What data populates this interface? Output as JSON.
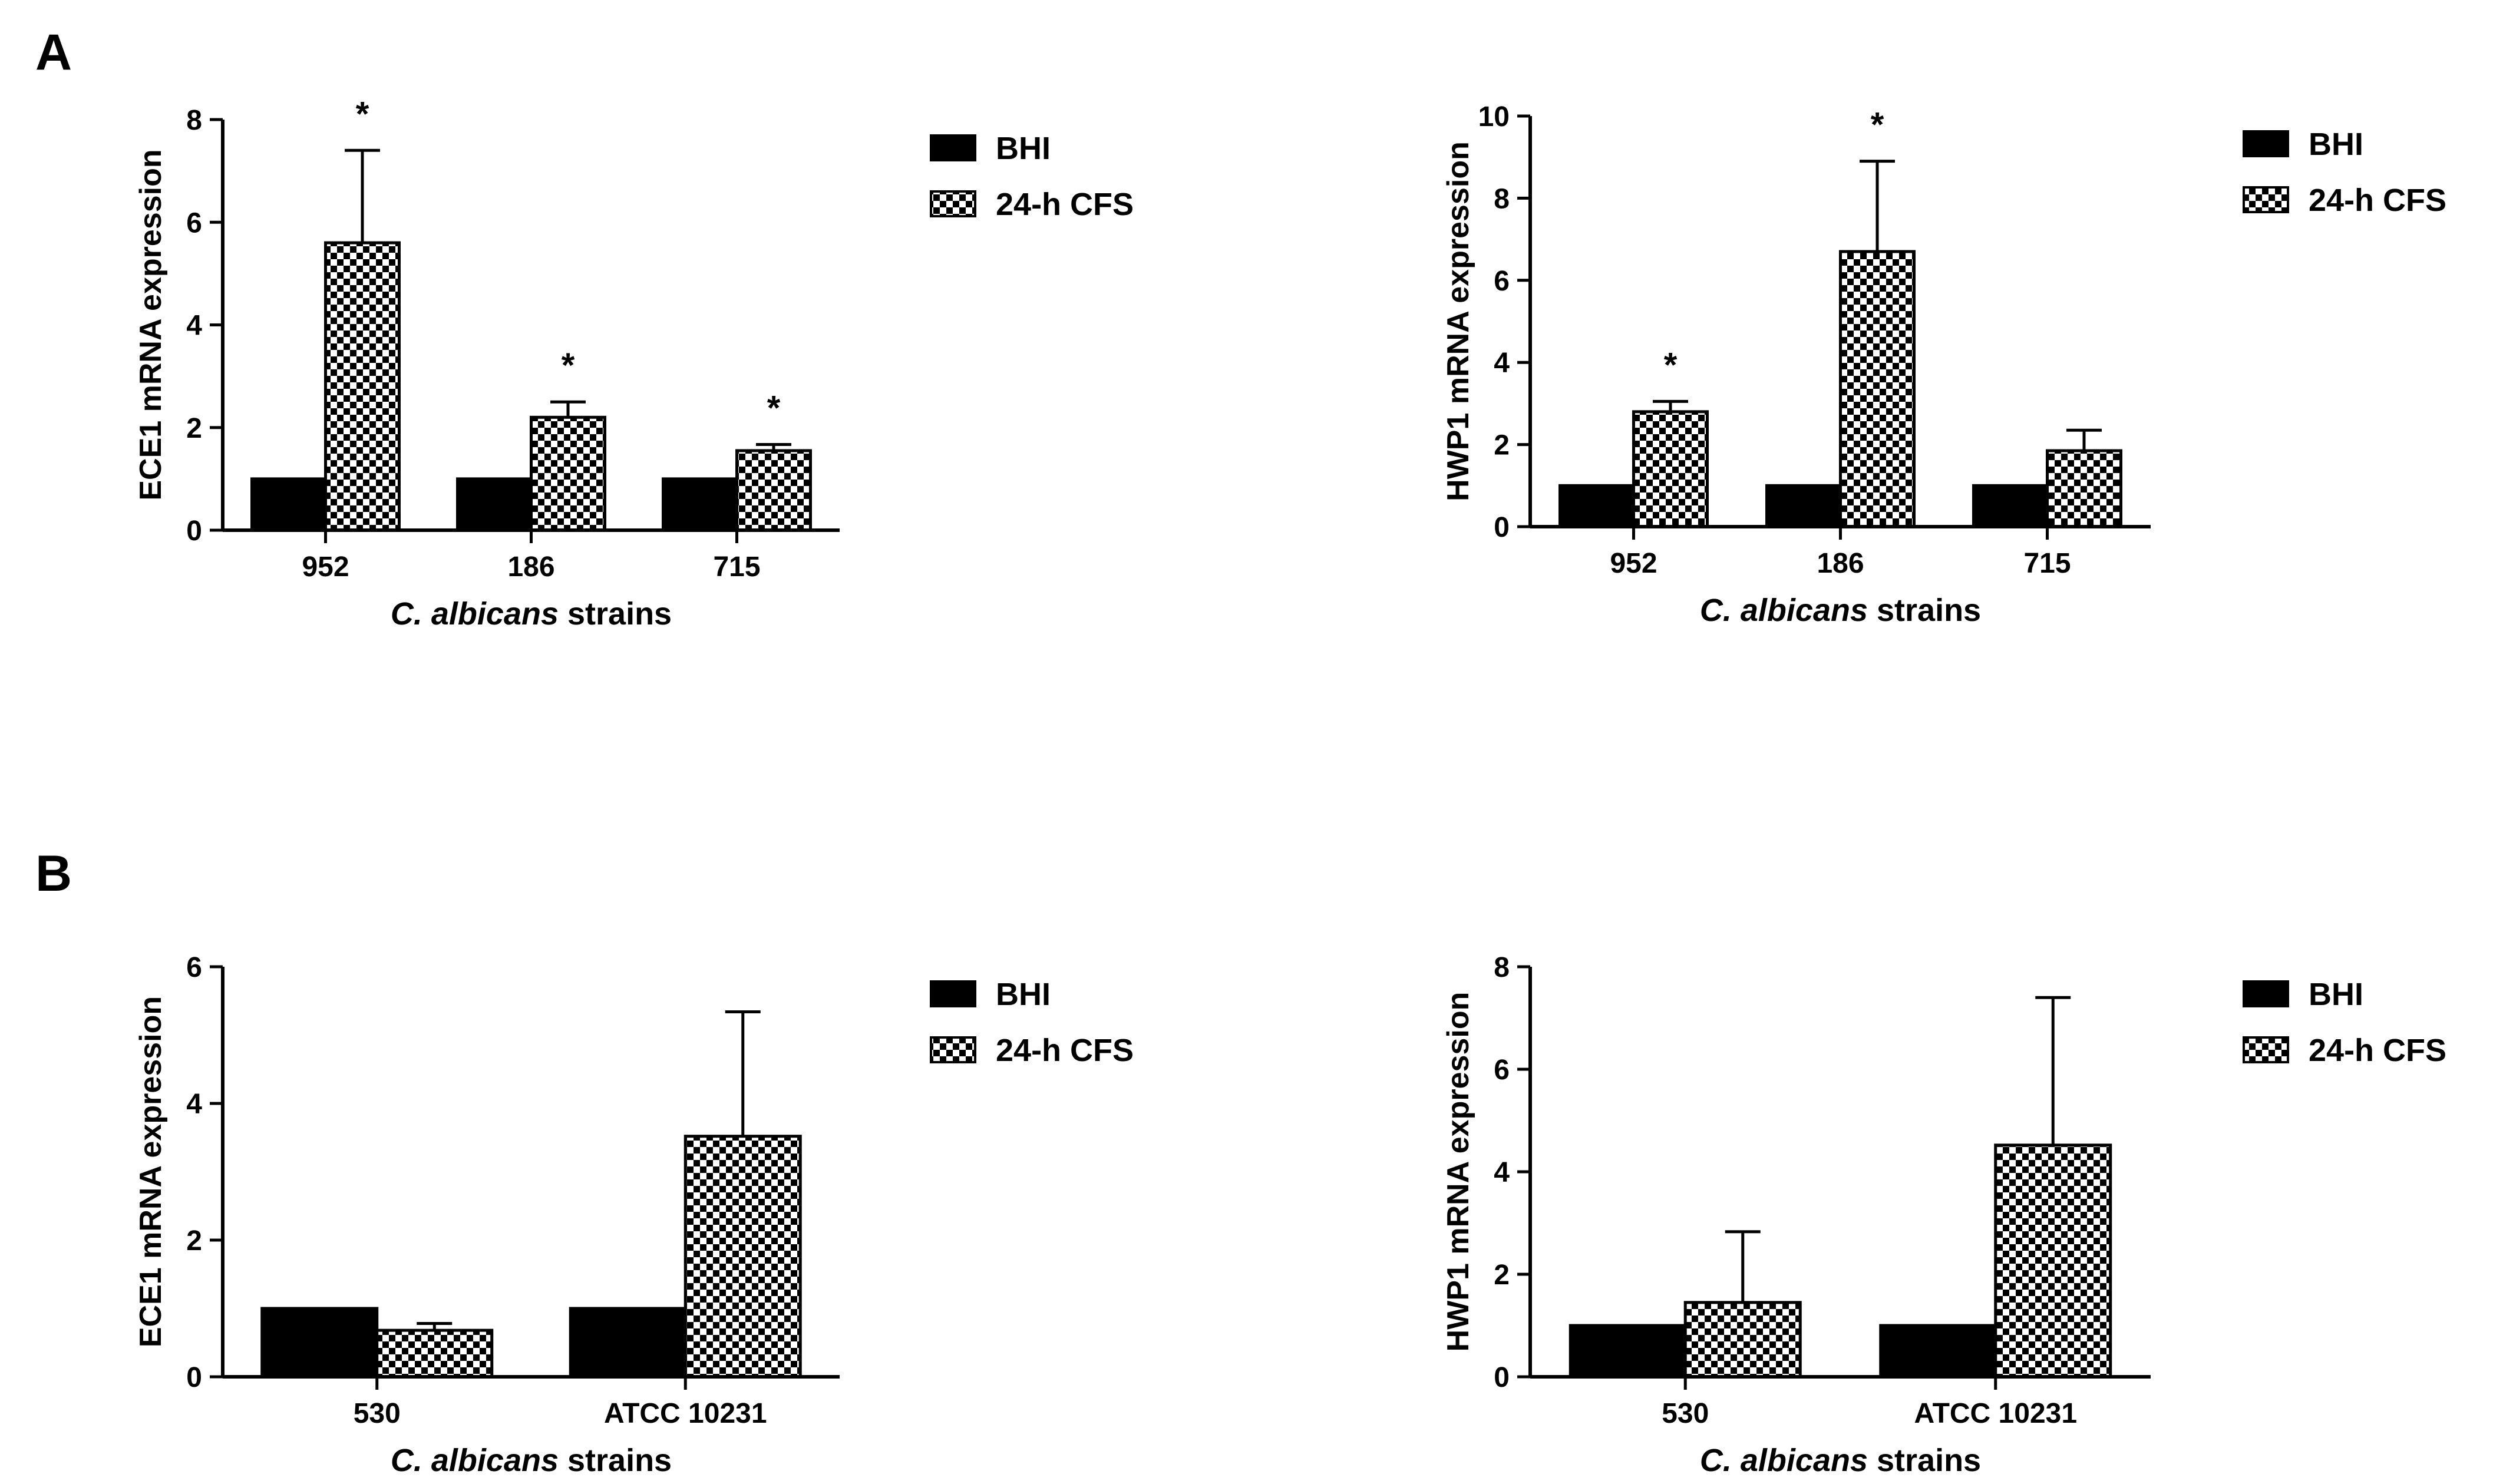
{
  "chart_data": [
    {
      "type": "bar",
      "panel_label": "A",
      "categories": [
        "952",
        "186",
        "715"
      ],
      "series": [
        {
          "name": "BHI",
          "pattern": "solid",
          "values": [
            1,
            1,
            1
          ],
          "errors": [
            0,
            0,
            0
          ]
        },
        {
          "name": "24-h CFS",
          "pattern": "checker",
          "values": [
            5.6,
            2.2,
            1.55
          ],
          "errors": [
            1.8,
            0.3,
            0.12
          ]
        }
      ],
      "significance": [
        "*",
        "*",
        "*"
      ],
      "xlabel_italic": "C. albicans",
      "xlabel_rest": " strains",
      "ylabel": "ECE1 mRNA expression",
      "ylim": [
        0,
        8
      ],
      "yticks": [
        "0",
        "2",
        "4",
        "6",
        "8"
      ],
      "grid": false,
      "legend_position": "right"
    },
    {
      "type": "bar",
      "panel_label": "",
      "categories": [
        "952",
        "186",
        "715"
      ],
      "series": [
        {
          "name": "BHI",
          "pattern": "solid",
          "values": [
            1,
            1,
            1
          ],
          "errors": [
            0,
            0,
            0
          ]
        },
        {
          "name": "24-h CFS",
          "pattern": "checker",
          "values": [
            2.8,
            6.7,
            1.85
          ],
          "errors": [
            0.25,
            2.2,
            0.5
          ]
        }
      ],
      "significance": [
        "*",
        "*",
        ""
      ],
      "xlabel_italic": "C. albicans",
      "xlabel_rest": " strains",
      "ylabel": "HWP1 mRNA expression",
      "ylim": [
        0,
        10
      ],
      "yticks": [
        "0",
        "2",
        "4",
        "6",
        "8",
        "10"
      ],
      "grid": false,
      "legend_position": "right"
    },
    {
      "type": "bar",
      "panel_label": "B",
      "categories": [
        "530",
        "ATCC 10231"
      ],
      "series": [
        {
          "name": "BHI",
          "pattern": "solid",
          "values": [
            1,
            1
          ],
          "errors": [
            0,
            0
          ]
        },
        {
          "name": "24-h CFS",
          "pattern": "checker",
          "values": [
            0.68,
            3.52
          ],
          "errors": [
            0.1,
            1.82
          ]
        }
      ],
      "significance": [
        "",
        ""
      ],
      "xlabel_italic": "C. albicans",
      "xlabel_rest": " strains",
      "ylabel": "ECE1 mRNA expression",
      "ylim": [
        0,
        6
      ],
      "yticks": [
        "0",
        "2",
        "4",
        "6"
      ],
      "grid": false,
      "legend_position": "right"
    },
    {
      "type": "bar",
      "panel_label": "",
      "categories": [
        "530",
        "ATCC 10231"
      ],
      "series": [
        {
          "name": "BHI",
          "pattern": "solid",
          "values": [
            1,
            1
          ],
          "errors": [
            0,
            0
          ]
        },
        {
          "name": "24-h CFS",
          "pattern": "checker",
          "values": [
            1.45,
            4.52
          ],
          "errors": [
            1.38,
            2.88
          ]
        }
      ],
      "significance": [
        "",
        ""
      ],
      "xlabel_italic": "C. albicans",
      "xlabel_rest": " strains",
      "ylabel": "HWP1 mRNA expression",
      "ylim": [
        0,
        8
      ],
      "yticks": [
        "0",
        "2",
        "4",
        "6",
        "8"
      ],
      "grid": false,
      "legend_position": "right"
    }
  ]
}
